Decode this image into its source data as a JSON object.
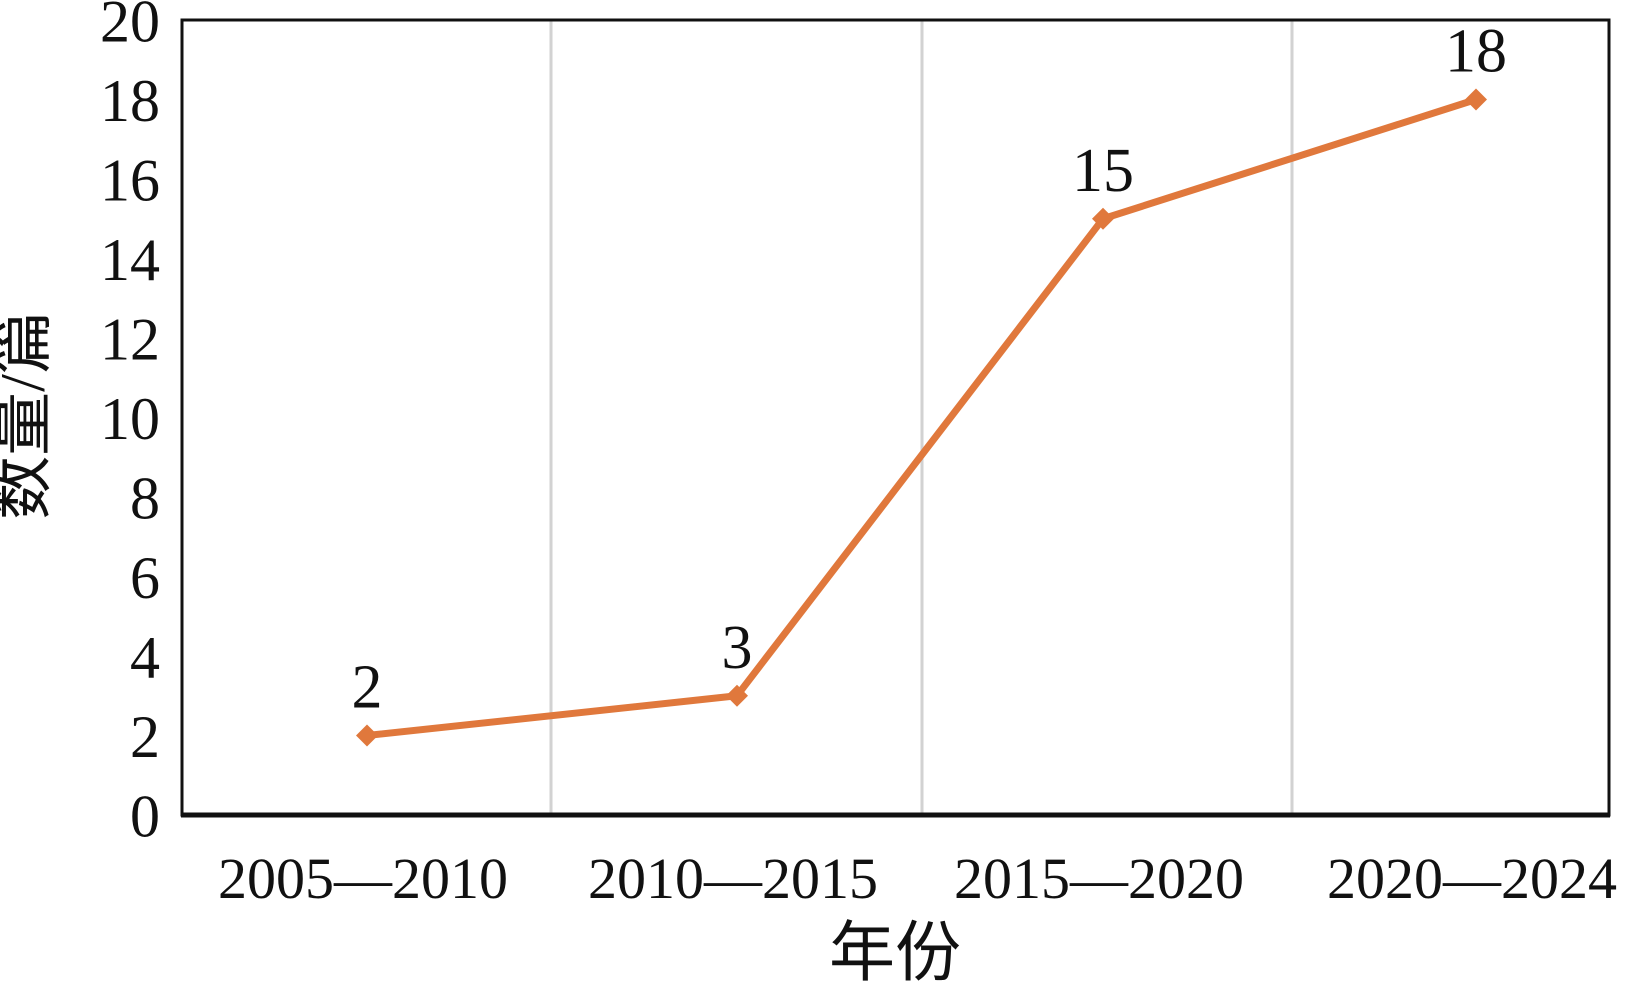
{
  "chart_data": {
    "type": "line",
    "title": "",
    "categories": [
      "2005—2010",
      "2010—2015",
      "2015—2020",
      "2020—2024"
    ],
    "series": [
      {
        "name": "数量",
        "values": [
          2,
          3,
          15,
          18
        ]
      }
    ],
    "data_labels": [
      "2",
      "3",
      "15",
      "18"
    ],
    "xlabel": "年份",
    "ylabel": "数量/篇",
    "ylim": [
      0,
      20
    ],
    "ytick_step": 2,
    "yticks": [
      0,
      2,
      4,
      6,
      8,
      10,
      12,
      14,
      16,
      18,
      20
    ],
    "grid": "vertical-only",
    "legend": "none",
    "marker": "diamond",
    "colors": {
      "line": "#E0783C",
      "marker": "#E0783C",
      "gridline": "#D2D2D2",
      "axis_frame": "#111111",
      "text": "#111111",
      "background": "#FFFFFF"
    }
  }
}
